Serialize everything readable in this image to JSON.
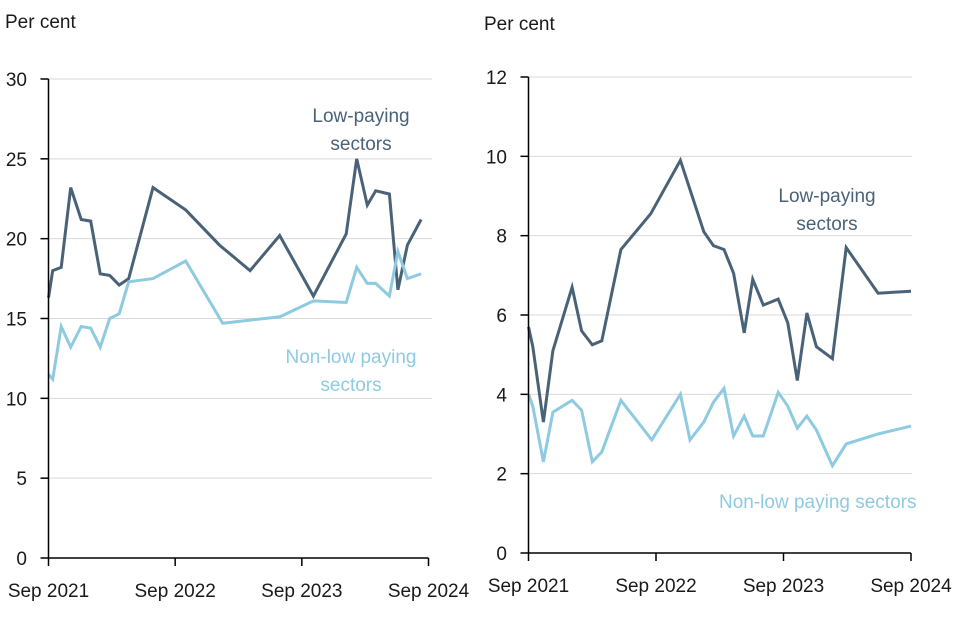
{
  "colors": {
    "low_paying": "#4a6278",
    "non_low_paying": "#8ecae0"
  },
  "chart_data": [
    {
      "type": "line",
      "ylabel": "Per cent",
      "ylim": [
        0,
        30
      ],
      "yticks": [
        0,
        5,
        10,
        15,
        20,
        25,
        30
      ],
      "xlim_months_from_sep_2021": [
        0,
        36
      ],
      "xticks": [
        {
          "label": "Sep 2021",
          "month": 0
        },
        {
          "label": "Sep 2022",
          "month": 12
        },
        {
          "label": "Sep 2023",
          "month": 24
        },
        {
          "label": "Sep 2024",
          "month": 36
        }
      ],
      "grid": true,
      "annotations": [
        {
          "series": "low_paying",
          "lines": [
            "Low-paying",
            "sectors"
          ]
        },
        {
          "series": "non_low_paying",
          "lines": [
            "Non-low paying",
            "sectors"
          ]
        }
      ],
      "series": [
        {
          "name": "Low-paying sectors",
          "key": "low_paying",
          "x": [
            0,
            0.4,
            1.2,
            2.1,
            3.1,
            4.0,
            4.9,
            5.8,
            6.7,
            7.6,
            9.9,
            13.0,
            16.2,
            19.1,
            21.9,
            25.1,
            28.2,
            29.2,
            30.2,
            31.0,
            32.3,
            33.1,
            34.0,
            35.3
          ],
          "values": [
            16.3,
            18.0,
            18.2,
            23.2,
            21.2,
            21.1,
            17.8,
            17.7,
            17.1,
            17.5,
            23.2,
            21.8,
            19.6,
            18.0,
            20.2,
            16.4,
            20.3,
            25.0,
            22.1,
            23.0,
            22.8,
            16.8,
            19.6,
            21.2
          ]
        },
        {
          "name": "Non-low paying sectors",
          "key": "non_low_paying",
          "x": [
            0,
            0.4,
            1.2,
            2.1,
            3.1,
            4.0,
            4.9,
            5.8,
            6.7,
            7.6,
            9.9,
            13.0,
            16.5,
            19.1,
            21.9,
            25.1,
            28.2,
            29.2,
            30.2,
            31.0,
            32.3,
            33.1,
            34.0,
            35.3
          ],
          "values": [
            11.5,
            11.2,
            14.5,
            13.2,
            14.5,
            14.4,
            13.2,
            15.0,
            15.3,
            17.3,
            17.5,
            18.6,
            14.7,
            14.9,
            15.1,
            16.1,
            16.0,
            18.2,
            17.2,
            17.2,
            16.4,
            19.2,
            17.5,
            17.8
          ]
        }
      ]
    },
    {
      "type": "line",
      "ylabel": "Per cent",
      "ylim": [
        0,
        12
      ],
      "yticks": [
        0,
        2,
        4,
        6,
        8,
        10,
        12
      ],
      "xlim_months_from_sep_2021": [
        0,
        36
      ],
      "xticks": [
        {
          "label": "Sep 2021",
          "month": 0
        },
        {
          "label": "Sep 2022",
          "month": 12
        },
        {
          "label": "Sep 2023",
          "month": 24
        },
        {
          "label": "Sep 2024",
          "month": 36
        }
      ],
      "grid": true,
      "annotations": [
        {
          "series": "low_paying",
          "lines": [
            "Low-paying",
            "sectors"
          ]
        },
        {
          "series": "non_low_paying",
          "lines": [
            "Non-low paying sectors"
          ]
        }
      ],
      "series": [
        {
          "name": "Low-paying sectors",
          "key": "low_paying",
          "x": [
            0,
            0.4,
            1.4,
            2.3,
            4.1,
            5.0,
            6.0,
            6.9,
            8.7,
            11.5,
            14.3,
            16.5,
            17.4,
            18.4,
            19.3,
            20.3,
            21.1,
            22.1,
            23.5,
            24.4,
            25.3,
            26.2,
            27.1,
            28.6,
            29.9,
            32.9,
            36
          ],
          "values": [
            5.7,
            5.2,
            3.3,
            5.1,
            6.7,
            5.6,
            5.25,
            5.35,
            7.65,
            8.55,
            9.9,
            8.1,
            7.75,
            7.65,
            7.05,
            5.55,
            6.9,
            6.25,
            6.4,
            5.8,
            4.35,
            6.05,
            5.2,
            4.9,
            7.7,
            6.55,
            6.6
          ]
        },
        {
          "name": "Non-low paying sectors",
          "key": "non_low_paying",
          "x": [
            0,
            0.4,
            1.4,
            2.3,
            4.1,
            5.0,
            6.0,
            6.9,
            8.7,
            11.6,
            14.3,
            15.2,
            16.5,
            17.4,
            18.4,
            19.3,
            20.3,
            21.1,
            22.1,
            23.5,
            24.4,
            25.3,
            26.2,
            27.1,
            28.6,
            29.9,
            32.9,
            36
          ],
          "values": [
            4.0,
            3.7,
            2.3,
            3.55,
            3.85,
            3.6,
            2.3,
            2.55,
            3.85,
            2.85,
            4.0,
            2.85,
            3.3,
            3.8,
            4.15,
            2.95,
            3.45,
            2.95,
            2.95,
            4.05,
            3.7,
            3.15,
            3.45,
            3.1,
            2.2,
            2.75,
            3.0,
            3.2
          ]
        }
      ]
    }
  ]
}
